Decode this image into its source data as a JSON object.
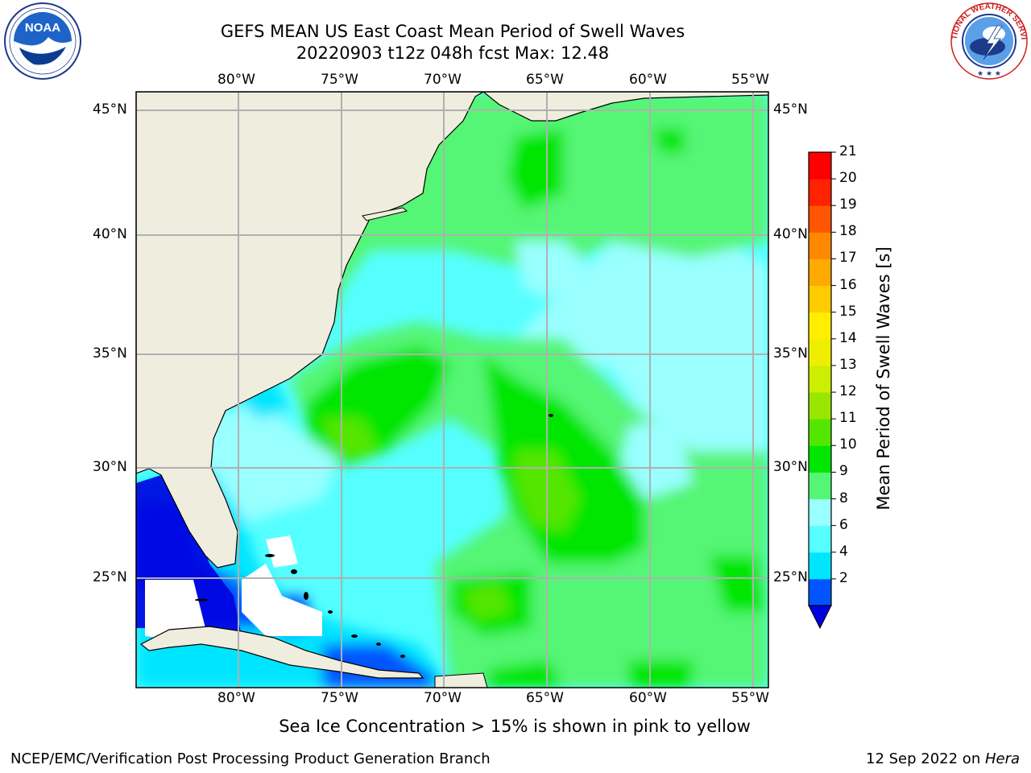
{
  "header": {
    "title_line1": "GEFS MEAN US East Coast Mean Period of Swell Waves",
    "title_line2": "20220903 t12z 048h fcst   Max: 12.48"
  },
  "logos": {
    "left": {
      "icon": "noaa-logo-icon",
      "text": "NOAA",
      "ring_text": "NATIONAL OCEANIC AND ATMOSPHERIC ADMINISTRATION · U.S. DEPARTMENT OF COMMERCE"
    },
    "right": {
      "icon": "nws-logo-icon",
      "ring_text": "NATIONAL WEATHER SERVICE"
    }
  },
  "map": {
    "lon_labels": [
      "80°W",
      "75°W",
      "70°W",
      "65°W",
      "60°W",
      "55°W"
    ],
    "lat_labels": [
      "45°N",
      "40°N",
      "35°N",
      "30°N",
      "25°N"
    ],
    "land_color": "#efedde",
    "coast_color": "#000000",
    "grid_color": "#b0b0b0"
  },
  "colorbar": {
    "label": "Mean Period of Swell Waves [s]",
    "ticks": [
      "21",
      "20",
      "19",
      "18",
      "17",
      "16",
      "15",
      "14",
      "13",
      "12",
      "11",
      "10",
      "9",
      "8",
      "6",
      "4",
      "2"
    ],
    "colors_bottom_to_top": [
      "#0055ff",
      "#00e5ff",
      "#55ffff",
      "#99ffff",
      "#55f575",
      "#00e600",
      "#55e600",
      "#99e600",
      "#ccee00",
      "#eeee00",
      "#ffee00",
      "#ffcc00",
      "#ffaa00",
      "#ff8800",
      "#ff5500",
      "#ff2200",
      "#ff0000"
    ],
    "extend_color": "#0000e0"
  },
  "footer": {
    "ice_note": "Sea Ice Concentration > 15% is shown in pink to yellow",
    "left": "NCEP/EMC/Verification Post Processing Product Generation Branch",
    "right_prefix": "12 Sep 2022 on ",
    "right_host": "Hera"
  }
}
